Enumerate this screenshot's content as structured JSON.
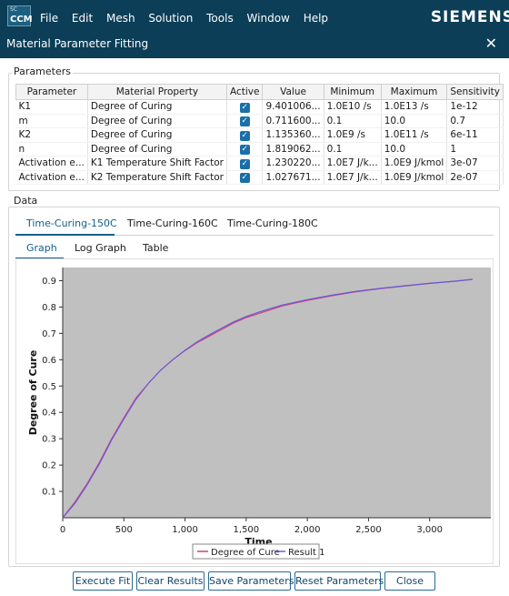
{
  "app": {
    "logo_sup": "SC",
    "logo_text": "CCM",
    "brand": "SIEMENS",
    "menu": [
      "File",
      "Edit",
      "Mesh",
      "Solution",
      "Tools",
      "Window",
      "Help"
    ]
  },
  "dialog": {
    "title": "Material Parameter Fitting",
    "close_glyph": "✕"
  },
  "parameters": {
    "group_label": "Parameters",
    "columns": [
      "Parameter",
      "Material Property",
      "Active",
      "Value",
      "Minimum",
      "Maximum",
      "Sensitivity"
    ],
    "rows": [
      {
        "parameter": "K1",
        "property": "Degree of Curing",
        "active": true,
        "value": "9.401006...",
        "minimum": "1.0E10 /s",
        "maximum": "1.0E13 /s",
        "sensitivity": "1e-12"
      },
      {
        "parameter": "m",
        "property": "Degree of Curing",
        "active": true,
        "value": "0.711600...",
        "minimum": "0.1",
        "maximum": "10.0",
        "sensitivity": "0.7"
      },
      {
        "parameter": "K2",
        "property": "Degree of Curing",
        "active": true,
        "value": "1.135360...",
        "minimum": "1.0E9 /s",
        "maximum": "1.0E11 /s",
        "sensitivity": "6e-11"
      },
      {
        "parameter": "n",
        "property": "Degree of Curing",
        "active": true,
        "value": "1.819062...",
        "minimum": "0.1",
        "maximum": "10.0",
        "sensitivity": "1"
      },
      {
        "parameter": "Activation e...",
        "property": "K1 Temperature Shift Factor",
        "active": true,
        "value": "1.230220...",
        "minimum": "1.0E7 J/k...",
        "maximum": "1.0E9 J/kmol",
        "sensitivity": "3e-07"
      },
      {
        "parameter": "Activation e...",
        "property": "K2 Temperature Shift Factor",
        "active": true,
        "value": "1.027671...",
        "minimum": "1.0E7 J/k...",
        "maximum": "1.0E9 J/kmol",
        "sensitivity": "2e-07"
      }
    ]
  },
  "data_section": {
    "group_label": "Data",
    "dataset_tabs": [
      "Time-Curing-150C",
      "Time-Curing-160C",
      "Time-Curing-180C"
    ],
    "active_dataset": 0,
    "view_tabs": [
      "Graph",
      "Log Graph",
      "Table"
    ],
    "active_view": 0
  },
  "chart_data": {
    "type": "line",
    "xlabel": "Time",
    "ylabel": "Degree of Cure",
    "xlim": [
      0,
      3500
    ],
    "ylim": [
      0,
      0.95
    ],
    "xticks": [
      0,
      500,
      1000,
      1500,
      2000,
      2500,
      3000
    ],
    "xtick_labels": [
      "0",
      "500",
      "1,000",
      "1,500",
      "2,000",
      "2,500",
      "3,000"
    ],
    "yticks": [
      0.1,
      0.2,
      0.3,
      0.4,
      0.5,
      0.6,
      0.7,
      0.8,
      0.9
    ],
    "ytick_labels": [
      "0.1",
      "0.2",
      "0.3",
      "0.4",
      "0.5",
      "0.6",
      "0.7",
      "0.8",
      "0.9"
    ],
    "grid": false,
    "legend": "bottom",
    "plot_background": "#c0c0c0",
    "series": [
      {
        "name": "Degree of Cure",
        "color": "#d0407a",
        "x": [
          0,
          100,
          200,
          300,
          400,
          500,
          600,
          700,
          800,
          900,
          1000,
          1100,
          1200,
          1300,
          1400,
          1500,
          1600,
          1700,
          1800,
          1900,
          2000,
          2200,
          2400,
          2600,
          2800,
          3000,
          3200,
          3350
        ],
        "y": [
          0.0,
          0.06,
          0.13,
          0.21,
          0.3,
          0.38,
          0.455,
          0.51,
          0.56,
          0.6,
          0.635,
          0.665,
          0.69,
          0.715,
          0.74,
          0.76,
          0.775,
          0.79,
          0.805,
          0.815,
          0.825,
          0.843,
          0.858,
          0.87,
          0.88,
          0.89,
          0.898,
          0.905
        ]
      },
      {
        "name": "Result 1",
        "color": "#6a5ad8",
        "x": [
          0,
          100,
          200,
          300,
          400,
          500,
          600,
          700,
          800,
          900,
          1000,
          1100,
          1200,
          1300,
          1400,
          1500,
          1600,
          1700,
          1800,
          1900,
          2000,
          2200,
          2400,
          2600,
          2800,
          3000,
          3200,
          3350
        ],
        "y": [
          0.0,
          0.055,
          0.125,
          0.205,
          0.295,
          0.375,
          0.45,
          0.51,
          0.56,
          0.6,
          0.636,
          0.668,
          0.695,
          0.72,
          0.744,
          0.764,
          0.78,
          0.795,
          0.808,
          0.818,
          0.828,
          0.845,
          0.86,
          0.871,
          0.881,
          0.89,
          0.898,
          0.905
        ]
      }
    ]
  },
  "buttons": {
    "execute_fit": "Execute Fit",
    "clear_results": "Clear Results",
    "save_parameters": "Save Parameters",
    "reset_parameters": "Reset Parameters",
    "close": "Close"
  }
}
